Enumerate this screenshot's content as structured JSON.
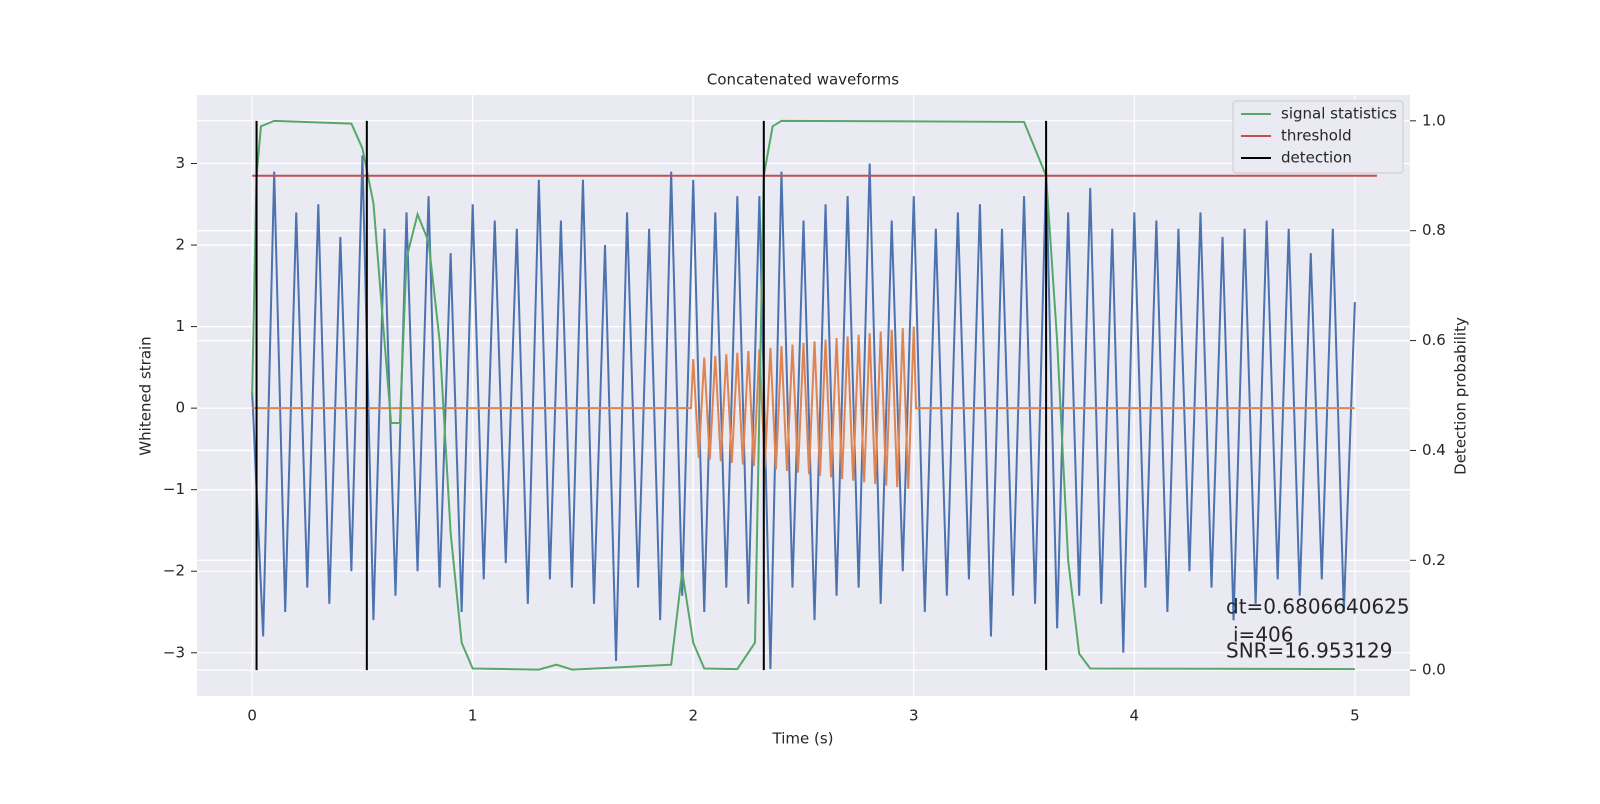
{
  "chart_data": {
    "type": "line",
    "title": "Concatenated waveforms",
    "xlabel": "Time (s)",
    "ylabel": "Whitened strain",
    "y2label": "Detection probability",
    "xlim": [
      -0.25,
      5.25
    ],
    "ylim": [
      -3.53,
      3.84
    ],
    "y2lim": [
      -0.047,
      1.047
    ],
    "xticks": [
      0,
      1,
      2,
      3,
      4,
      5
    ],
    "yticks": [
      {
        "value": -3,
        "label": "−3"
      },
      {
        "value": -2,
        "label": "−2"
      },
      {
        "value": -1,
        "label": "−1"
      },
      0,
      1,
      2,
      3
    ],
    "y2ticks": [
      {
        "value": 0,
        "label": "0.0"
      },
      0.2,
      0.4,
      0.6,
      0.8,
      {
        "value": 1,
        "label": "1.0"
      }
    ],
    "grid": true,
    "legend": "upper right",
    "series": [
      {
        "color": "#4c72b0",
        "x": [
          0,
          0.05,
          0.1,
          0.15,
          0.2,
          0.25,
          0.3,
          0.35,
          0.4,
          0.45,
          0.5,
          0.55,
          0.6,
          0.65,
          0.7,
          0.75,
          0.8,
          0.85,
          0.9,
          0.95,
          1,
          1.05,
          1.1,
          1.15,
          1.2,
          1.25,
          1.3,
          1.35,
          1.4,
          1.45,
          1.5,
          1.55,
          1.6,
          1.65,
          1.7,
          1.75,
          1.8,
          1.85,
          1.9,
          1.95,
          2,
          2.05,
          2.1,
          2.15,
          2.2,
          2.25,
          2.3,
          2.35,
          2.4,
          2.45,
          2.5,
          2.55,
          2.6,
          2.65,
          2.7,
          2.75,
          2.8,
          2.85,
          2.9,
          2.95,
          3,
          3.05,
          3.1,
          3.15,
          3.2,
          3.25,
          3.3,
          3.35,
          3.4,
          3.45,
          3.5,
          3.55,
          3.6,
          3.65,
          3.7,
          3.75,
          3.8,
          3.85,
          3.9,
          3.95,
          4,
          4.05,
          4.1,
          4.15,
          4.2,
          4.25,
          4.3,
          4.35,
          4.4,
          4.45,
          4.5,
          4.55,
          4.6,
          4.65,
          4.7,
          4.75,
          4.8,
          4.85,
          4.9,
          4.95,
          5
        ],
        "values": [
          0.2,
          -2.8,
          2.9,
          -2.5,
          2.4,
          -2.2,
          2.5,
          -2.4,
          2.1,
          -2.0,
          3.1,
          -2.6,
          2.2,
          -2.3,
          2.4,
          -2.0,
          2.6,
          -2.2,
          1.9,
          -2.5,
          2.5,
          -2.1,
          2.3,
          -1.9,
          2.2,
          -2.4,
          2.8,
          -2.1,
          2.3,
          -2.2,
          2.8,
          -2.4,
          2.0,
          -3.1,
          2.4,
          -2.2,
          2.2,
          -2.6,
          2.9,
          -2.3,
          2.8,
          -2.5,
          2.4,
          -2.2,
          2.6,
          -2.4,
          2.6,
          -3.2,
          2.9,
          -2.2,
          2.3,
          -2.6,
          2.5,
          -2.3,
          2.6,
          -2.2,
          3.0,
          -2.4,
          2.3,
          -2.0,
          2.6,
          -2.5,
          2.2,
          -2.3,
          2.4,
          -2.1,
          2.5,
          -2.8,
          2.2,
          -2.3,
          2.6,
          -2.4,
          2.9,
          -2.7,
          2.4,
          -2.3,
          2.7,
          -2.4,
          2.2,
          -3.0,
          2.4,
          -2.2,
          2.3,
          -2.5,
          2.2,
          -2.0,
          2.4,
          -2.2,
          2.1,
          -2.6,
          2.2,
          -2.4,
          2.3,
          -2.1,
          2.2,
          -2.3,
          1.9,
          -2.1,
          2.2,
          -2.5,
          1.3
        ]
      },
      {
        "color": "#dd8452",
        "x": [
          0,
          1.99,
          2.0,
          2.025,
          2.05,
          2.075,
          2.1,
          2.125,
          2.15,
          2.175,
          2.2,
          2.225,
          2.25,
          2.275,
          2.3,
          2.325,
          2.35,
          2.375,
          2.4,
          2.425,
          2.45,
          2.475,
          2.5,
          2.525,
          2.55,
          2.575,
          2.6,
          2.625,
          2.65,
          2.675,
          2.7,
          2.725,
          2.75,
          2.775,
          2.8,
          2.825,
          2.85,
          2.875,
          2.9,
          2.925,
          2.95,
          2.975,
          3.0,
          3.01,
          5.0
        ],
        "values": [
          0,
          0,
          0.6,
          -0.61,
          0.62,
          -0.63,
          0.64,
          -0.65,
          0.66,
          -0.67,
          0.68,
          -0.69,
          0.7,
          -0.71,
          0.72,
          -0.73,
          0.74,
          -0.75,
          0.76,
          -0.77,
          0.78,
          -0.79,
          0.8,
          -0.81,
          0.82,
          -0.83,
          0.84,
          -0.85,
          0.86,
          -0.87,
          0.88,
          -0.89,
          0.9,
          -0.91,
          0.92,
          -0.93,
          0.94,
          -0.95,
          0.96,
          -0.97,
          0.98,
          -0.99,
          1.0,
          0,
          0
        ]
      },
      {
        "name": "signal statistics",
        "color": "#55a868",
        "axis": "y2",
        "x": [
          0,
          0.02,
          0.04,
          0.1,
          0.45,
          0.5,
          0.55,
          0.6,
          0.63,
          0.67,
          0.7,
          0.75,
          0.8,
          0.85,
          0.9,
          0.95,
          1.0,
          1.3,
          1.38,
          1.45,
          1.9,
          1.95,
          2.0,
          2.05,
          2.2,
          2.28,
          2.32,
          2.36,
          2.4,
          3.5,
          3.6,
          3.65,
          3.7,
          3.75,
          3.8,
          5.0
        ],
        "values": [
          0.5,
          0.9,
          0.99,
          1.0,
          0.995,
          0.95,
          0.85,
          0.6,
          0.45,
          0.45,
          0.75,
          0.83,
          0.78,
          0.6,
          0.25,
          0.05,
          0.003,
          0.001,
          0.01,
          0.001,
          0.01,
          0.18,
          0.05,
          0.003,
          0.002,
          0.05,
          0.9,
          0.99,
          1.0,
          0.998,
          0.9,
          0.6,
          0.2,
          0.03,
          0.003,
          0.002
        ]
      },
      {
        "name": "threshold",
        "color": "#c44e52",
        "axis": "y2",
        "x": [
          0,
          5.1
        ],
        "values": [
          0.9,
          0.9
        ]
      },
      {
        "name": "detection",
        "color": "#000000",
        "axis": "y2",
        "style": "vlines",
        "x": [
          0.02,
          0.52,
          2.32,
          3.6
        ],
        "values": [
          1,
          1,
          1,
          1
        ]
      }
    ],
    "annotations": [
      "dt=0.6806640625",
      "i=406",
      "SNR=16.953129"
    ]
  }
}
